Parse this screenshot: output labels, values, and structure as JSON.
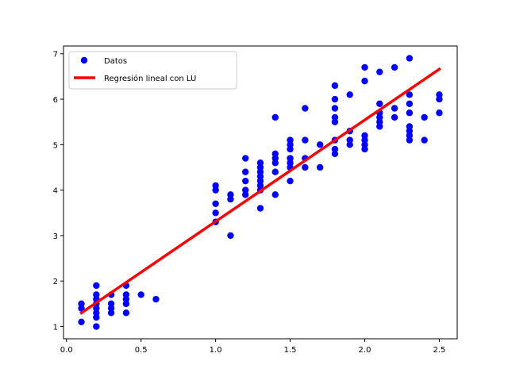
{
  "chart_data": {
    "type": "scatter",
    "x_ticks": [
      "0.0",
      "0.5",
      "1.0",
      "1.5",
      "2.0",
      "2.5"
    ],
    "y_ticks": [
      "1",
      "2",
      "3",
      "4",
      "5",
      "6",
      "7"
    ],
    "xlim": [
      -0.02,
      2.62
    ],
    "ylim": [
      0.73,
      7.17
    ],
    "grid": false,
    "legend_position": "top-left",
    "series": [
      {
        "name": "Datos",
        "kind": "scatter",
        "color": "#0000ff",
        "points": [
          [
            0.1,
            1.1
          ],
          [
            0.1,
            1.4
          ],
          [
            0.1,
            1.5
          ],
          [
            0.2,
            1.0
          ],
          [
            0.2,
            1.2
          ],
          [
            0.2,
            1.3
          ],
          [
            0.2,
            1.4
          ],
          [
            0.2,
            1.5
          ],
          [
            0.2,
            1.6
          ],
          [
            0.2,
            1.7
          ],
          [
            0.2,
            1.9
          ],
          [
            0.3,
            1.3
          ],
          [
            0.3,
            1.4
          ],
          [
            0.3,
            1.5
          ],
          [
            0.3,
            1.7
          ],
          [
            0.4,
            1.3
          ],
          [
            0.4,
            1.5
          ],
          [
            0.4,
            1.6
          ],
          [
            0.4,
            1.7
          ],
          [
            0.4,
            1.9
          ],
          [
            0.5,
            1.7
          ],
          [
            0.6,
            1.6
          ],
          [
            1.0,
            3.3
          ],
          [
            1.0,
            3.5
          ],
          [
            1.0,
            3.7
          ],
          [
            1.0,
            4.0
          ],
          [
            1.0,
            4.1
          ],
          [
            1.1,
            3.0
          ],
          [
            1.1,
            3.8
          ],
          [
            1.1,
            3.9
          ],
          [
            1.2,
            3.9
          ],
          [
            1.2,
            4.0
          ],
          [
            1.2,
            4.2
          ],
          [
            1.2,
            4.4
          ],
          [
            1.2,
            4.7
          ],
          [
            1.3,
            3.6
          ],
          [
            1.3,
            4.0
          ],
          [
            1.3,
            4.1
          ],
          [
            1.3,
            4.2
          ],
          [
            1.3,
            4.3
          ],
          [
            1.3,
            4.4
          ],
          [
            1.3,
            4.5
          ],
          [
            1.3,
            4.6
          ],
          [
            1.4,
            3.9
          ],
          [
            1.4,
            4.4
          ],
          [
            1.4,
            4.6
          ],
          [
            1.4,
            4.7
          ],
          [
            1.4,
            4.8
          ],
          [
            1.4,
            5.6
          ],
          [
            1.5,
            4.2
          ],
          [
            1.5,
            4.5
          ],
          [
            1.5,
            4.6
          ],
          [
            1.5,
            4.7
          ],
          [
            1.5,
            4.9
          ],
          [
            1.5,
            5.0
          ],
          [
            1.5,
            5.1
          ],
          [
            1.6,
            4.5
          ],
          [
            1.6,
            4.7
          ],
          [
            1.6,
            5.1
          ],
          [
            1.6,
            5.8
          ],
          [
            1.7,
            4.5
          ],
          [
            1.7,
            5.0
          ],
          [
            1.8,
            4.8
          ],
          [
            1.8,
            4.9
          ],
          [
            1.8,
            5.1
          ],
          [
            1.8,
            5.5
          ],
          [
            1.8,
            5.6
          ],
          [
            1.8,
            5.8
          ],
          [
            1.8,
            6.0
          ],
          [
            1.8,
            6.3
          ],
          [
            1.9,
            5.0
          ],
          [
            1.9,
            5.1
          ],
          [
            1.9,
            5.3
          ],
          [
            1.9,
            6.1
          ],
          [
            2.0,
            4.9
          ],
          [
            2.0,
            5.0
          ],
          [
            2.0,
            5.1
          ],
          [
            2.0,
            5.2
          ],
          [
            2.0,
            6.4
          ],
          [
            2.0,
            6.7
          ],
          [
            2.1,
            5.4
          ],
          [
            2.1,
            5.5
          ],
          [
            2.1,
            5.6
          ],
          [
            2.1,
            5.7
          ],
          [
            2.1,
            5.9
          ],
          [
            2.1,
            6.6
          ],
          [
            2.2,
            5.6
          ],
          [
            2.2,
            5.8
          ],
          [
            2.2,
            6.7
          ],
          [
            2.3,
            5.1
          ],
          [
            2.3,
            5.2
          ],
          [
            2.3,
            5.3
          ],
          [
            2.3,
            5.4
          ],
          [
            2.3,
            5.7
          ],
          [
            2.3,
            5.9
          ],
          [
            2.3,
            6.1
          ],
          [
            2.3,
            6.9
          ],
          [
            2.4,
            5.1
          ],
          [
            2.4,
            5.6
          ],
          [
            2.5,
            5.7
          ],
          [
            2.5,
            6.0
          ],
          [
            2.5,
            6.1
          ]
        ]
      },
      {
        "name": "Regresión lineal con LU",
        "kind": "line",
        "color": "#ff0000",
        "points": [
          [
            0.1,
            1.3
          ],
          [
            2.5,
            6.66
          ]
        ]
      }
    ]
  }
}
